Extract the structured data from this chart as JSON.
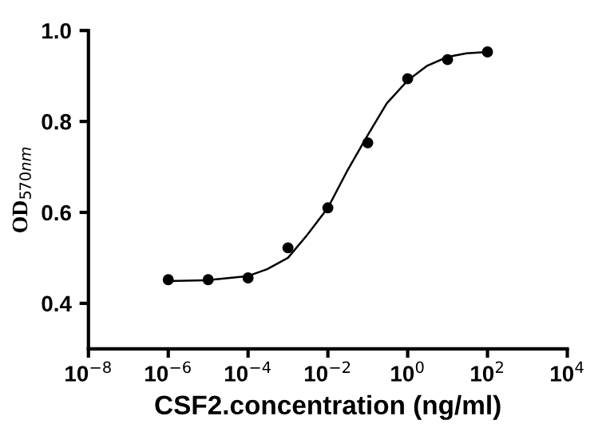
{
  "chart_data": {
    "type": "scatter",
    "xlabel": "CSF2.concentration (ng/ml)",
    "ylabel": "OD$_{570nm}$",
    "log": "x",
    "grid": false,
    "legend": false,
    "xlim": [
      1e-08,
      10000
    ],
    "ylim": [
      0.3,
      1.0
    ],
    "xticks": [
      {
        "value": 1e-08,
        "label": "10$^{−8}$"
      },
      {
        "value": 1e-06,
        "label": "10$^{−6}$"
      },
      {
        "value": 0.0001,
        "label": "10$^{−4}$"
      },
      {
        "value": 0.01,
        "label": "10$^{−2}$"
      },
      {
        "value": 1,
        "label": "10$^{0}$"
      },
      {
        "value": 100,
        "label": "10$^{2}$"
      },
      {
        "value": 10000,
        "label": "10$^{4}$"
      }
    ],
    "yticks": [
      {
        "value": 0.4,
        "label": "0.4"
      },
      {
        "value": 0.6,
        "label": "0.6"
      },
      {
        "value": 0.8,
        "label": "0.8"
      },
      {
        "value": 1.0,
        "label": "1.0"
      }
    ],
    "series": [
      {
        "marker": "circle",
        "color": "#000000",
        "x": [
          1e-06,
          1e-05,
          0.0001,
          0.001,
          0.01,
          0.1,
          1,
          10,
          100
        ],
        "values": [
          0.452,
          0.452,
          0.456,
          0.522,
          0.61,
          0.753,
          0.894,
          0.936,
          0.953
        ]
      },
      {
        "type": "line",
        "marker": "none",
        "line_style": "solid",
        "color": "#000000",
        "x": [
          1e-06,
          1e-05,
          0.0001,
          0.0003,
          0.001,
          0.003,
          0.01,
          0.03,
          0.1,
          0.3,
          1,
          3,
          10,
          30,
          100
        ],
        "values": [
          0.449,
          0.451,
          0.46,
          0.475,
          0.5,
          0.55,
          0.61,
          0.69,
          0.77,
          0.84,
          0.89,
          0.922,
          0.942,
          0.95,
          0.953
        ]
      }
    ]
  }
}
